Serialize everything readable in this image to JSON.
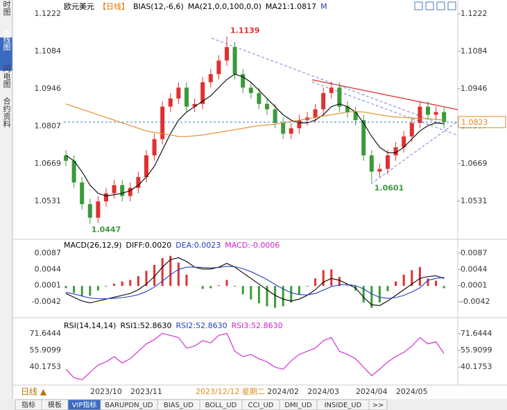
{
  "sidebar": [
    "分时图",
    "K线图",
    "闪电图",
    "合约资料"
  ],
  "period_button": "日线 ▲",
  "tabs": [
    "指标",
    "模板",
    "VIP指标",
    "BARUPDN_UD",
    "BIAS_UD",
    "BOLL_UD",
    "CCI_UD",
    "DMI_UD",
    "INSIDE_UD",
    ">>"
  ],
  "crosshair_date": "2023/12/12 星期二",
  "chart_data": [
    {
      "type": "candlestick",
      "legend": [
        {
          "text": "欧元美元",
          "color": "#000000"
        },
        {
          "text": "【日线】",
          "color": "#e07000"
        },
        {
          "text": "BIAS(12,-6,6)",
          "color": "#000000"
        },
        {
          "text": "MA(21,0,0,100,0,0)",
          "color": "#000000"
        },
        {
          "text": "MA21:1.0817",
          "color": "#000000"
        },
        {
          "text": "M",
          "color": "#2040c0"
        }
      ],
      "categories": [
        null,
        null,
        null,
        null,
        null,
        "2023/10",
        null,
        null,
        null,
        null,
        "2023/11",
        null,
        null,
        null,
        null,
        null,
        null,
        null,
        null,
        null,
        null,
        null,
        null,
        null,
        null,
        null,
        null,
        "2024/02",
        null,
        null,
        null,
        null,
        "2024/03",
        null,
        null,
        null,
        null,
        null,
        "2024/04",
        null,
        null,
        null,
        null,
        "2024/05",
        null,
        null,
        null,
        null
      ],
      "open": [
        1.07,
        1.068,
        1.06,
        1.052,
        1.047,
        1.053,
        1.056,
        1.059,
        1.055,
        1.058,
        1.062,
        1.07,
        1.076,
        1.088,
        1.091,
        1.095,
        1.088,
        1.089,
        1.097,
        1.1,
        1.105,
        1.11,
        1.1,
        1.095,
        1.093,
        1.089,
        1.087,
        1.082,
        1.078,
        1.08,
        1.083,
        1.084,
        1.087,
        1.093,
        1.095,
        1.088,
        1.086,
        1.083,
        1.07,
        1.064,
        1.065,
        1.07,
        1.073,
        1.077,
        1.082,
        1.088,
        1.085,
        1.086
      ],
      "high": [
        1.072,
        1.07,
        1.062,
        1.054,
        1.055,
        1.058,
        1.061,
        1.061,
        1.06,
        1.064,
        1.072,
        1.078,
        1.09,
        1.093,
        1.097,
        1.097,
        1.091,
        1.099,
        1.102,
        1.107,
        1.1139,
        1.112,
        1.102,
        1.097,
        1.095,
        1.091,
        1.089,
        1.084,
        1.082,
        1.085,
        1.086,
        1.089,
        1.095,
        1.097,
        1.097,
        1.09,
        1.088,
        1.085,
        1.072,
        1.067,
        1.072,
        1.075,
        1.079,
        1.084,
        1.09,
        1.09,
        1.088,
        1.088
      ],
      "low": [
        1.066,
        1.058,
        1.05,
        1.0447,
        1.045,
        1.051,
        1.054,
        1.053,
        1.053,
        1.056,
        1.06,
        1.068,
        1.074,
        1.086,
        1.089,
        1.086,
        1.086,
        1.087,
        1.095,
        1.098,
        1.103,
        1.098,
        1.093,
        1.091,
        1.087,
        1.085,
        1.08,
        1.076,
        1.076,
        1.078,
        1.081,
        1.082,
        1.085,
        1.091,
        1.086,
        1.084,
        1.081,
        1.068,
        1.0601,
        1.062,
        1.063,
        1.068,
        1.071,
        1.075,
        1.08,
        1.083,
        1.083,
        1.08
      ],
      "close": [
        1.068,
        1.06,
        1.052,
        1.047,
        1.053,
        1.056,
        1.059,
        1.055,
        1.058,
        1.062,
        1.07,
        1.076,
        1.088,
        1.091,
        1.095,
        1.088,
        1.089,
        1.097,
        1.1,
        1.105,
        1.11,
        1.1,
        1.095,
        1.093,
        1.089,
        1.087,
        1.082,
        1.078,
        1.08,
        1.083,
        1.084,
        1.087,
        1.093,
        1.095,
        1.088,
        1.086,
        1.083,
        1.07,
        1.064,
        1.065,
        1.07,
        1.073,
        1.077,
        1.082,
        1.088,
        1.085,
        1.086,
        1.0823
      ],
      "up_color": "#e03030",
      "down_color": "#3a9a3a",
      "series": [
        {
          "color": "#000000",
          "values": [
            1.07,
            1.068,
            1.064,
            1.059,
            1.056,
            1.055,
            1.0555,
            1.056,
            1.057,
            1.059,
            1.062,
            1.066,
            1.072,
            1.078,
            1.083,
            1.086,
            1.088,
            1.09,
            1.092,
            1.095,
            1.098,
            1.1,
            1.099,
            1.097,
            1.094,
            1.091,
            1.088,
            1.085,
            1.083,
            1.082,
            1.082,
            1.083,
            1.085,
            1.088,
            1.089,
            1.088,
            1.086,
            1.082,
            1.077,
            1.073,
            1.071,
            1.071,
            1.073,
            1.076,
            1.079,
            1.081,
            1.082,
            1.0817
          ]
        },
        {
          "color": "#e08a20",
          "values": [
            1.089,
            1.088,
            1.087,
            1.086,
            1.085,
            1.084,
            1.083,
            1.082,
            1.081,
            1.08,
            1.079,
            1.0785,
            1.078,
            1.0775,
            1.077,
            1.077,
            1.0772,
            1.0775,
            1.078,
            1.0785,
            1.079,
            1.0795,
            1.08,
            1.0805,
            1.081,
            1.0812,
            1.0815,
            1.082,
            1.0825,
            1.083,
            1.0835,
            1.084,
            1.0845,
            1.085,
            1.0855,
            1.086,
            1.0862,
            1.086,
            1.0855,
            1.085,
            1.0845,
            1.0842,
            1.084,
            1.0838,
            1.0836,
            1.0835,
            1.0833,
            1.083
          ]
        }
      ],
      "ylim": [
        1.039,
        1.1248
      ],
      "yticks": [
        1.1222,
        1.1084,
        1.0946,
        1.0807,
        1.0669,
        1.0531
      ]
    },
    {
      "type": "macd",
      "legend": [
        {
          "text": "MACD(26,12,9)",
          "color": "#000000"
        },
        {
          "text": "DIFF:0.0020",
          "color": "#000000"
        },
        {
          "text": "DEA:0.0023",
          "color": "#2040c0"
        },
        {
          "text": "MACD:-0.0006",
          "color": "#d020d0"
        }
      ],
      "diff": [
        -0.002,
        -0.003,
        -0.004,
        -0.0045,
        -0.004,
        -0.0035,
        -0.003,
        -0.0025,
        -0.002,
        -0.001,
        0.0005,
        0.0025,
        0.005,
        0.007,
        0.0075,
        0.0065,
        0.005,
        0.0045,
        0.0045,
        0.005,
        0.006,
        0.005,
        0.0035,
        0.002,
        0.0005,
        -0.001,
        -0.0025,
        -0.0035,
        -0.004,
        -0.0035,
        -0.0025,
        -0.001,
        0.001,
        0.002,
        0.0015,
        0.0005,
        -0.0005,
        -0.003,
        -0.005,
        -0.0052,
        -0.004,
        -0.0025,
        -0.001,
        0.0005,
        0.002,
        0.0025,
        0.0027,
        0.002
      ],
      "dea": [
        -0.0017,
        -0.0021,
        -0.0027,
        -0.0032,
        -0.0034,
        -0.0034,
        -0.0033,
        -0.0031,
        -0.0028,
        -0.0023,
        -0.0015,
        -0.0003,
        0.0013,
        0.003,
        0.0044,
        0.005,
        0.005,
        0.0049,
        0.0048,
        0.0049,
        0.0052,
        0.0051,
        0.0046,
        0.0038,
        0.0028,
        0.0017,
        0.0004,
        -0.0008,
        -0.0018,
        -0.0023,
        -0.0024,
        -0.002,
        -0.0011,
        -0.0002,
        0.0003,
        0.0004,
        0.0001,
        -0.0008,
        -0.0021,
        -0.003,
        -0.0033,
        -0.0031,
        -0.0025,
        -0.0016,
        -0.0005,
        0.0015,
        0.002,
        0.0023
      ],
      "macd": [
        -0.0006,
        -0.0018,
        -0.0026,
        -0.0026,
        -0.0012,
        -0.0002,
        0.0006,
        0.0012,
        0.0016,
        0.0026,
        0.004,
        0.0056,
        0.0074,
        0.008,
        0.0062,
        0.003,
        0,
        -0.0008,
        -0.0006,
        0.0002,
        0.0016,
        -0.0002,
        -0.0022,
        -0.0036,
        -0.0046,
        -0.0054,
        -0.0058,
        -0.0054,
        -0.0044,
        -0.0024,
        -0.0002,
        0.002,
        0.0042,
        0.0044,
        0.0024,
        0.0002,
        -0.0012,
        -0.0044,
        -0.0058,
        -0.0044,
        -0.0014,
        0.0012,
        0.003,
        0.0042,
        0.005,
        0.002,
        0.0014,
        -0.0006
      ],
      "diff_color": "#000000",
      "dea_color": "#2040c0",
      "up_color": "#e03030",
      "down_color": "#3a9a3a",
      "ylim": [
        -0.00789,
        0.01146
      ],
      "yticks": [
        0.0087,
        0.0044,
        0.0001,
        -0.0042
      ]
    },
    {
      "type": "line",
      "legend": [
        {
          "text": "RSI(14,14,14)",
          "color": "#000000"
        },
        {
          "text": "RSI1:52.8630",
          "color": "#000000"
        },
        {
          "text": "RSI2:52.8630",
          "color": "#2040c0"
        },
        {
          "text": "RSI3:52.8630",
          "color": "#d020d0"
        }
      ],
      "series": [
        {
          "color": "#d020d0",
          "values": [
            38,
            30,
            28,
            35,
            42,
            45,
            50,
            44,
            48,
            55,
            62,
            66,
            72,
            70,
            68,
            58,
            60,
            65,
            63,
            70,
            72,
            55,
            50,
            52,
            48,
            45,
            40,
            38,
            46,
            52,
            55,
            58,
            65,
            68,
            55,
            52,
            48,
            40,
            32,
            38,
            45,
            50,
            54,
            60,
            68,
            62,
            64,
            52.863
          ]
        }
      ],
      "ylim": [
        25.09,
        78.86
      ],
      "yticks": [
        71.6444,
        55.9099,
        40.1753
      ]
    }
  ]
}
